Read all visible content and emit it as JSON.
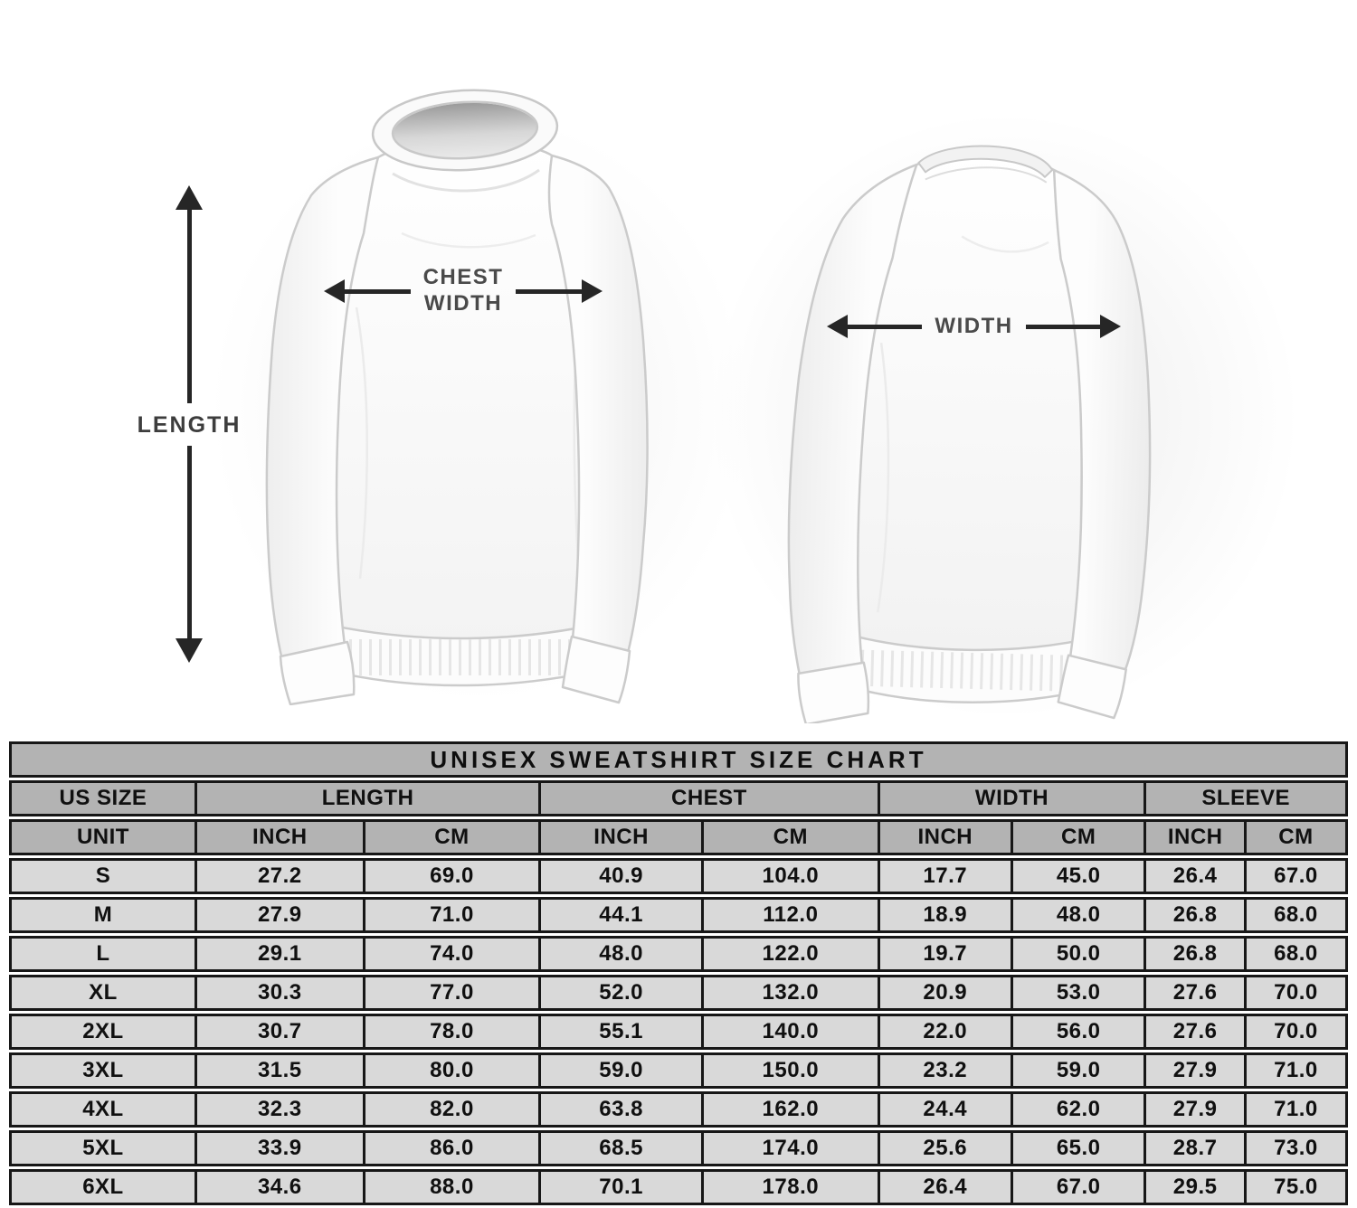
{
  "diagram": {
    "length_label": "LENGTH",
    "chest_label_line1": "CHEST",
    "chest_label_line2": "WIDTH",
    "back_width_label": "WIDTH",
    "arrow_color": "#262626",
    "label_color": "#4a4a4a"
  },
  "size_chart": {
    "title": "UNISEX SWEATSHIRT SIZE CHART",
    "group_headers": [
      "US SIZE",
      "LENGTH",
      "CHEST",
      "WIDTH",
      "SLEEVE"
    ],
    "unit_row": [
      "UNIT",
      "INCH",
      "CM",
      "INCH",
      "CM",
      "INCH",
      "CM",
      "INCH",
      "CM"
    ],
    "rows": [
      [
        "S",
        "27.2",
        "69.0",
        "40.9",
        "104.0",
        "17.7",
        "45.0",
        "26.4",
        "67.0"
      ],
      [
        "M",
        "27.9",
        "71.0",
        "44.1",
        "112.0",
        "18.9",
        "48.0",
        "26.8",
        "68.0"
      ],
      [
        "L",
        "29.1",
        "74.0",
        "48.0",
        "122.0",
        "19.7",
        "50.0",
        "26.8",
        "68.0"
      ],
      [
        "XL",
        "30.3",
        "77.0",
        "52.0",
        "132.0",
        "20.9",
        "53.0",
        "27.6",
        "70.0"
      ],
      [
        "2XL",
        "30.7",
        "78.0",
        "55.1",
        "140.0",
        "22.0",
        "56.0",
        "27.6",
        "70.0"
      ],
      [
        "3XL",
        "31.5",
        "80.0",
        "59.0",
        "150.0",
        "23.2",
        "59.0",
        "27.9",
        "71.0"
      ],
      [
        "4XL",
        "32.3",
        "82.0",
        "63.8",
        "162.0",
        "24.4",
        "62.0",
        "27.9",
        "71.0"
      ],
      [
        "5XL",
        "33.9",
        "86.0",
        "68.5",
        "174.0",
        "25.6",
        "65.0",
        "28.7",
        "73.0"
      ],
      [
        "6XL",
        "34.6",
        "88.0",
        "70.1",
        "178.0",
        "26.4",
        "67.0",
        "29.5",
        "75.0"
      ]
    ],
    "colors": {
      "table_border": "#171717",
      "header_bg": "#b3b3b3",
      "row_bg": "#d9d9d9"
    }
  },
  "chart_data": {
    "type": "table",
    "title": "UNISEX SWEATSHIRT SIZE CHART",
    "columns": [
      "US SIZE",
      "LENGTH (INCH)",
      "LENGTH (CM)",
      "CHEST (INCH)",
      "CHEST (CM)",
      "WIDTH (INCH)",
      "WIDTH (CM)",
      "SLEEVE (INCH)",
      "SLEEVE (CM)"
    ],
    "rows": [
      [
        "S",
        27.2,
        69.0,
        40.9,
        104.0,
        17.7,
        45.0,
        26.4,
        67.0
      ],
      [
        "M",
        27.9,
        71.0,
        44.1,
        112.0,
        18.9,
        48.0,
        26.8,
        68.0
      ],
      [
        "L",
        29.1,
        74.0,
        48.0,
        122.0,
        19.7,
        50.0,
        26.8,
        68.0
      ],
      [
        "XL",
        30.3,
        77.0,
        52.0,
        132.0,
        20.9,
        53.0,
        27.6,
        70.0
      ],
      [
        "2XL",
        30.7,
        78.0,
        55.1,
        140.0,
        22.0,
        56.0,
        27.6,
        70.0
      ],
      [
        "3XL",
        31.5,
        80.0,
        59.0,
        150.0,
        23.2,
        59.0,
        27.9,
        71.0
      ],
      [
        "4XL",
        32.3,
        82.0,
        63.8,
        162.0,
        24.4,
        62.0,
        27.9,
        71.0
      ],
      [
        "5XL",
        33.9,
        86.0,
        68.5,
        174.0,
        25.6,
        65.0,
        28.7,
        73.0
      ],
      [
        "6XL",
        34.6,
        88.0,
        70.1,
        178.0,
        26.4,
        67.0,
        29.5,
        75.0
      ]
    ]
  }
}
